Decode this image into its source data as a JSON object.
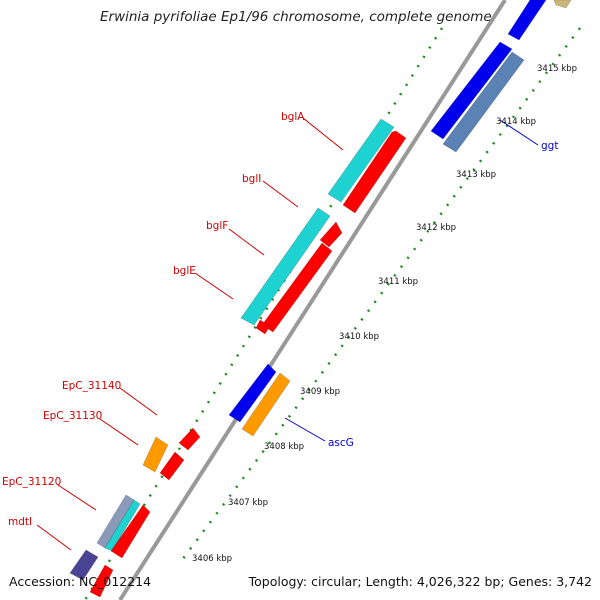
{
  "title": "Erwinia pyrifoliae Ep1/96 chromosome, complete genome",
  "footer": {
    "accession_label": "Accession:",
    "accession": "NC_012214",
    "topology_text": "Topology: circular; Length: 4,026,322 bp; Genes: 3,742"
  },
  "ticks": [
    {
      "label": "3415 kbp",
      "kbp": 3415
    },
    {
      "label": "3414 kbp",
      "kbp": 3414
    },
    {
      "label": "3413 kbp",
      "kbp": 3413
    },
    {
      "label": "3412 kbp",
      "kbp": 3412
    },
    {
      "label": "3411 kbp",
      "kbp": 3411
    },
    {
      "label": "3410 kbp",
      "kbp": 3410
    },
    {
      "label": "3409 kbp",
      "kbp": 3409
    },
    {
      "label": "3408 kbp",
      "kbp": 3408
    },
    {
      "label": "3407 kbp",
      "kbp": 3407
    },
    {
      "label": "3406 kbp",
      "kbp": 3406
    }
  ],
  "gene_labels": [
    {
      "name": "bglA",
      "color": "#cc0000"
    },
    {
      "name": "bglI",
      "color": "#cc0000"
    },
    {
      "name": "bglF",
      "color": "#cc0000"
    },
    {
      "name": "bglE",
      "color": "#cc0000"
    },
    {
      "name": "EpC_31140",
      "color": "#cc0000"
    },
    {
      "name": "EpC_31130",
      "color": "#cc0000"
    },
    {
      "name": "EpC_31120",
      "color": "#cc0000"
    },
    {
      "name": "mdtI",
      "color": "#cc0000"
    },
    {
      "name": "ggt",
      "color": "#0000cc"
    },
    {
      "name": "ascG",
      "color": "#0000cc"
    }
  ],
  "colors": {
    "backbone": "#999999",
    "dots": "#1e8c1e",
    "cds_red": "#ff0000",
    "cyan": "#1ed2d2",
    "blue": "#0000ee",
    "steel": "#5a82b4",
    "orange": "#ff9900",
    "navy": "#4a4494",
    "olive": "#c8b878"
  }
}
